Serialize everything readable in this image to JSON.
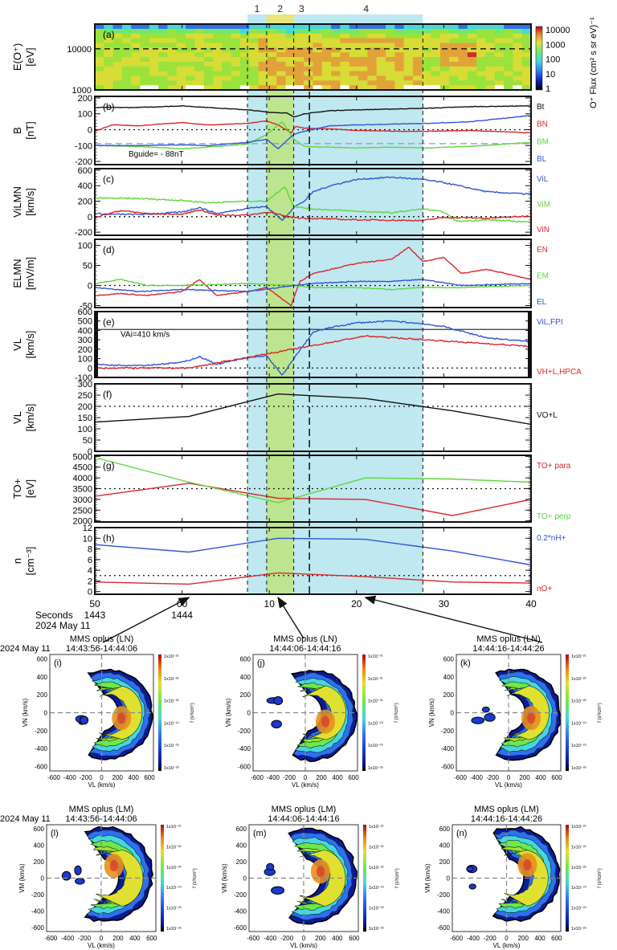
{
  "chart_data": {
    "type": "line",
    "figure": "MMS multi-panel time series with O+ velocity distribution functions",
    "time_axis": {
      "range_seconds": [
        -10,
        40
      ],
      "ticks": [
        "50",
        "00",
        "10",
        "20",
        "30",
        "40"
      ],
      "tick_seconds": [
        -10,
        0,
        10,
        20,
        30,
        40
      ],
      "minute_labels": [
        {
          "label": "1443",
          "at": -10
        },
        {
          "label": "1444",
          "at": 0
        }
      ],
      "row_label": "Seconds",
      "date_label": "2024 May 11"
    },
    "regions": [
      {
        "label": "1",
        "start": 7.5,
        "end": 9.7,
        "color": "#bfe8f0"
      },
      {
        "label": "2",
        "start": 9.7,
        "end": 12.8,
        "color": "#bde58f"
      },
      {
        "label": "3",
        "start": 12.8,
        "end": 14.6,
        "color": "#bfe8f0"
      },
      {
        "label": "4",
        "start": 14.6,
        "end": 27.6,
        "color": "#bfe8f0"
      }
    ],
    "region_header_colors": {
      "1": "#bfe8f0",
      "2": "#e6e67a",
      "3": "#bfe8f0",
      "4": "#bfe8f0"
    },
    "vlines": [
      {
        "t": 7.5,
        "style": "dash"
      },
      {
        "t": 9.7,
        "style": "dash"
      },
      {
        "t": 12.8,
        "style": "dash"
      },
      {
        "t": 14.6,
        "style": "longdash"
      },
      {
        "t": 27.6,
        "style": "dash"
      }
    ],
    "panels": [
      {
        "id": "a",
        "tag": "(a)",
        "type": "heatmap",
        "ylabel": [
          "E(O⁺)",
          "[eV]"
        ],
        "yscale": "log",
        "ylim": [
          1000,
          40000
        ],
        "yticks": [
          {
            "v": 1000,
            "label": "1000"
          },
          {
            "v": 10000,
            "label": "10000"
          }
        ],
        "hline": {
          "v": 10000,
          "style": "dash"
        },
        "colorbar": {
          "label": "O⁺ Flux (cm² s sr eV)⁻¹",
          "ticks": [
            "10000",
            "1000",
            "100",
            "10",
            "1"
          ],
          "range": [
            1,
            10000
          ]
        }
      },
      {
        "id": "b",
        "tag": "(b)",
        "ylabel": [
          "B",
          "[nT]"
        ],
        "ylim": [
          -220,
          210
        ],
        "yticks": [
          -200,
          -100,
          0,
          100,
          200
        ],
        "hline": {
          "v": 0,
          "style": "dot"
        },
        "hline2": {
          "v": -88,
          "style": "dash",
          "color": "#9b8ae0"
        },
        "annotation": "Bguide= - 88nT",
        "series": [
          {
            "name": "Bt",
            "color": "#111111",
            "t": [
              -10,
              -5,
              0,
              3,
              7.5,
              10,
              12,
              12.8,
              14,
              17,
              20,
              24,
              28,
              33,
              40
            ],
            "v": [
              140,
              140,
              150,
              140,
              125,
              110,
              105,
              80,
              100,
              120,
              125,
              130,
              135,
              145,
              150
            ]
          },
          {
            "name": "BN",
            "color": "#d9262a",
            "t": [
              -10,
              -8,
              -5,
              0,
              3,
              7.5,
              9.7,
              11,
              12.5,
              13,
              14,
              17,
              20,
              25,
              28,
              33,
              40
            ],
            "v": [
              -10,
              30,
              25,
              45,
              30,
              40,
              55,
              30,
              -20,
              20,
              10,
              5,
              -5,
              -10,
              -10,
              -5,
              -20
            ]
          },
          {
            "name": "BM",
            "color": "#5fd63a",
            "t": [
              -10,
              -5,
              0,
              3,
              7.5,
              9.7,
              11.5,
              12.8,
              14,
              17,
              20,
              24,
              28,
              33,
              40
            ],
            "v": [
              -100,
              -105,
              -120,
              -110,
              -90,
              -30,
              50,
              -60,
              -105,
              -110,
              -115,
              -110,
              -115,
              -105,
              -80
            ]
          },
          {
            "name": "BL",
            "color": "#2e55d6",
            "t": [
              -10,
              -5,
              0,
              3,
              7.5,
              9.7,
              11,
              12.8,
              14,
              17,
              20,
              24,
              28,
              33,
              40
            ],
            "v": [
              -100,
              -100,
              -95,
              -100,
              -80,
              -60,
              -120,
              -30,
              -10,
              25,
              30,
              35,
              40,
              50,
              90
            ]
          }
        ],
        "legend": [
          "Bt",
          "BN",
          "BM",
          "BL"
        ]
      },
      {
        "id": "c",
        "tag": "(c)",
        "ylabel": [
          "ViLMN",
          "[km/s]"
        ],
        "ylim": [
          -240,
          620
        ],
        "yticks": [
          -200,
          0,
          200,
          400,
          600
        ],
        "hline": {
          "v": 0,
          "style": "dot"
        },
        "series": [
          {
            "name": "ViL",
            "color": "#2e55d6",
            "t": [
              -10,
              -8,
              -4,
              0,
              2,
              4,
              7.5,
              9.7,
              11.5,
              12.8,
              14,
              15,
              17,
              20,
              24,
              27.6,
              30,
              35,
              40
            ],
            "v": [
              40,
              30,
              30,
              60,
              120,
              40,
              110,
              130,
              -50,
              120,
              200,
              320,
              400,
              480,
              510,
              480,
              440,
              320,
              290
            ]
          },
          {
            "name": "ViM",
            "color": "#5fd63a",
            "t": [
              -10,
              -5,
              0,
              3,
              7.5,
              9.7,
              11.8,
              12.8,
              15,
              20,
              24,
              27.6,
              30,
              31.5,
              35,
              40
            ],
            "v": [
              240,
              235,
              210,
              180,
              200,
              200,
              390,
              130,
              100,
              70,
              50,
              100,
              60,
              -60,
              -40,
              -70
            ]
          },
          {
            "name": "ViN",
            "color": "#d9262a",
            "t": [
              -10,
              -7,
              -4,
              0,
              2,
              4,
              7.5,
              10,
              12,
              14,
              20,
              27.6,
              30,
              35,
              40
            ],
            "v": [
              -10,
              80,
              40,
              30,
              90,
              20,
              20,
              60,
              0,
              -20,
              -40,
              -50,
              -10,
              -20,
              10
            ]
          }
        ],
        "legend": [
          "ViL",
          "ViM",
          "ViN"
        ]
      },
      {
        "id": "d",
        "tag": "(d)",
        "ylabel": [
          "ELMN",
          "[mV/m]"
        ],
        "ylim": [
          -55,
          115
        ],
        "yticks": [
          -50,
          0,
          50,
          100
        ],
        "hline": {
          "v": 0,
          "style": "dot"
        },
        "series": [
          {
            "name": "EN",
            "color": "#d9262a",
            "t": [
              -10,
              -7,
              -4,
              0,
              2,
              4,
              7.5,
              9.7,
              12.5,
              13.5,
              15,
              20,
              24,
              26,
              27.6,
              30,
              32,
              35,
              38,
              40
            ],
            "v": [
              -25,
              -20,
              -25,
              -15,
              15,
              -25,
              -15,
              -5,
              -50,
              10,
              30,
              55,
              65,
              95,
              60,
              70,
              30,
              40,
              25,
              15
            ]
          },
          {
            "name": "EM",
            "color": "#5fd63a",
            "t": [
              -10,
              -7,
              -4,
              0,
              7.5,
              12.8,
              15,
              20,
              24,
              27.6,
              32,
              40
            ],
            "v": [
              5,
              15,
              0,
              0,
              5,
              0,
              -5,
              -5,
              -10,
              -5,
              -5,
              0
            ]
          },
          {
            "name": "EL",
            "color": "#2e55d6",
            "t": [
              -10,
              -5,
              0,
              7.5,
              12.8,
              15,
              20,
              24,
              27.6,
              32,
              40
            ],
            "v": [
              -5,
              -15,
              -10,
              -15,
              0,
              5,
              10,
              10,
              15,
              0,
              5
            ]
          }
        ],
        "legend": [
          "EN",
          "EM",
          "EL"
        ]
      },
      {
        "id": "e",
        "tag": "(e)",
        "ylabel": [
          "VL",
          "[km/s]"
        ],
        "ylim": [
          -100,
          600
        ],
        "yticks": [
          -100,
          0,
          100,
          200,
          300,
          400,
          500,
          600
        ],
        "hline": {
          "v": 0,
          "style": "dot"
        },
        "hline2": {
          "v": 410,
          "style": "solid",
          "color": "#333333"
        },
        "annotation": "VAi=410 km/s",
        "series": [
          {
            "name": "ViL,FPI",
            "color": "#2e55d6",
            "t": [
              -10,
              -8,
              -4,
              0,
              2,
              4,
              7.5,
              9.7,
              11.5,
              12.8,
              14,
              15,
              17,
              20,
              24,
              27.6,
              30,
              35,
              40
            ],
            "v": [
              40,
              30,
              30,
              60,
              120,
              40,
              110,
              130,
              -80,
              100,
              250,
              380,
              430,
              480,
              500,
              470,
              440,
              320,
              280
            ]
          },
          {
            "name": "VH+L,HPCA",
            "color": "#d9262a",
            "t": [
              -10,
              0.8,
              21,
              40
            ],
            "v": [
              0,
              0,
              340,
              230
            ]
          }
        ],
        "legend": [
          "ViL,FPI",
          "VH+L,HPCA"
        ]
      },
      {
        "id": "f",
        "tag": "(f)",
        "ylabel": [
          "VL",
          "[km/s]"
        ],
        "ylim": [
          0,
          300
        ],
        "yticks": [
          0,
          50,
          100,
          150,
          200,
          250,
          300
        ],
        "hline": {
          "v": 200,
          "style": "dot"
        },
        "series": [
          {
            "name": "VO+L",
            "color": "#111111",
            "t": [
              -10,
              0.8,
              11,
              21,
              31,
              40
            ],
            "v": [
              130,
              155,
              255,
              235,
              180,
              120
            ]
          }
        ],
        "legend": [
          "VO+L"
        ]
      },
      {
        "id": "g",
        "tag": "(g)",
        "ylabel": [
          "TO+",
          "[eV]"
        ],
        "ylim": [
          1950,
          5050
        ],
        "yticks": [
          2000,
          2500,
          3000,
          3500,
          4000,
          4500,
          5000
        ],
        "hline": {
          "v": 3500,
          "style": "dot"
        },
        "series": [
          {
            "name": "TO+ para",
            "color": "#d9262a",
            "t": [
              -10,
              0.8,
              11,
              21,
              31,
              40
            ],
            "v": [
              3150,
              3750,
              3050,
              3000,
              2250,
              3000
            ]
          },
          {
            "name": "TO+ perp",
            "color": "#5fd63a",
            "t": [
              -10,
              -9.5,
              0.8,
              11,
              21,
              31,
              40
            ],
            "v": [
              4800,
              4900,
              3800,
              2850,
              4000,
              3950,
              3800
            ]
          }
        ],
        "legend": [
          "TO+ para",
          "TO+ perp"
        ]
      },
      {
        "id": "h",
        "tag": "(h)",
        "ylabel": [
          "n",
          "[cm⁻³]"
        ],
        "ylim": [
          -0.5,
          12
        ],
        "yticks": [
          0,
          2,
          4,
          6,
          8,
          10,
          12
        ],
        "hline": {
          "v": 3,
          "style": "dot"
        },
        "series": [
          {
            "name": "0.2*nH+",
            "color": "#2e55d6",
            "t": [
              -10,
              0.8,
              11,
              21,
              31,
              40
            ],
            "v": [
              8.8,
              7.4,
              10,
              9.8,
              7.6,
              5
            ]
          },
          {
            "name": "nO+",
            "color": "#d9262a",
            "t": [
              -10,
              0.8,
              11,
              21,
              31,
              40
            ],
            "v": [
              1.8,
              1.4,
              3.5,
              2.8,
              1.8,
              1.6
            ]
          }
        ],
        "legend": [
          "0.2*nH+",
          "nO+"
        ]
      }
    ],
    "arrows": [
      {
        "from_vdf": "i",
        "to_t": 0.8
      },
      {
        "from_vdf": "j",
        "to_t": 11
      },
      {
        "from_vdf": "k",
        "to_t": 21
      }
    ],
    "vdfs": {
      "common": {
        "xlabel": "VL (km/s)",
        "xticks": [
          "-600",
          "-400",
          "-200",
          "0",
          "200",
          "400",
          "600"
        ],
        "yticks": [
          "600",
          "400",
          "200",
          "0",
          "-200",
          "-400",
          "-600"
        ],
        "range": [
          -650,
          650
        ],
        "colorbar_label": "f (s³/cm⁶)",
        "colorbar_ticks": [
          "1x10⁻²¹",
          "1x10⁻²²",
          "1x10⁻²³",
          "1x10⁻²⁴",
          "1x10⁻²⁵",
          "1x10⁻²⁶"
        ]
      },
      "panels": [
        {
          "id": "i",
          "tag": "(i)",
          "title": "MMS oplus (LN)",
          "time": "14:43:56-14:44:06",
          "ylabel": "VN (km/s)",
          "date": "2024 May 11",
          "peak": [
            250,
            -60
          ]
        },
        {
          "id": "j",
          "tag": "(j)",
          "title": "MMS oplus (LN)",
          "time": "14:44:06-14:44:16",
          "ylabel": "VN (km/s)",
          "date": "",
          "peak": [
            250,
            -100
          ]
        },
        {
          "id": "k",
          "tag": "(k)",
          "title": "MMS oplus (LN)",
          "time": "14:44:16-14:44:26",
          "ylabel": "VN (km/s)",
          "date": "",
          "peak": [
            280,
            -60
          ]
        },
        {
          "id": "l",
          "tag": "(l)",
          "title": "MMS oplus (LM)",
          "time": "14:43:56-14:44:06",
          "ylabel": "VM (km/s)",
          "date": "2024 May 11",
          "peak": [
            150,
            150
          ]
        },
        {
          "id": "m",
          "tag": "(m)",
          "title": "MMS oplus (LM)",
          "time": "14:44:06-14:44:16",
          "ylabel": "VM (km/s)",
          "date": "",
          "peak": [
            200,
            80
          ]
        },
        {
          "id": "n",
          "tag": "(n)",
          "title": "MMS oplus (LM)",
          "time": "14:44:16-14:44:26",
          "ylabel": "VM (km/s)",
          "date": "",
          "peak": [
            250,
            160
          ]
        }
      ]
    }
  }
}
